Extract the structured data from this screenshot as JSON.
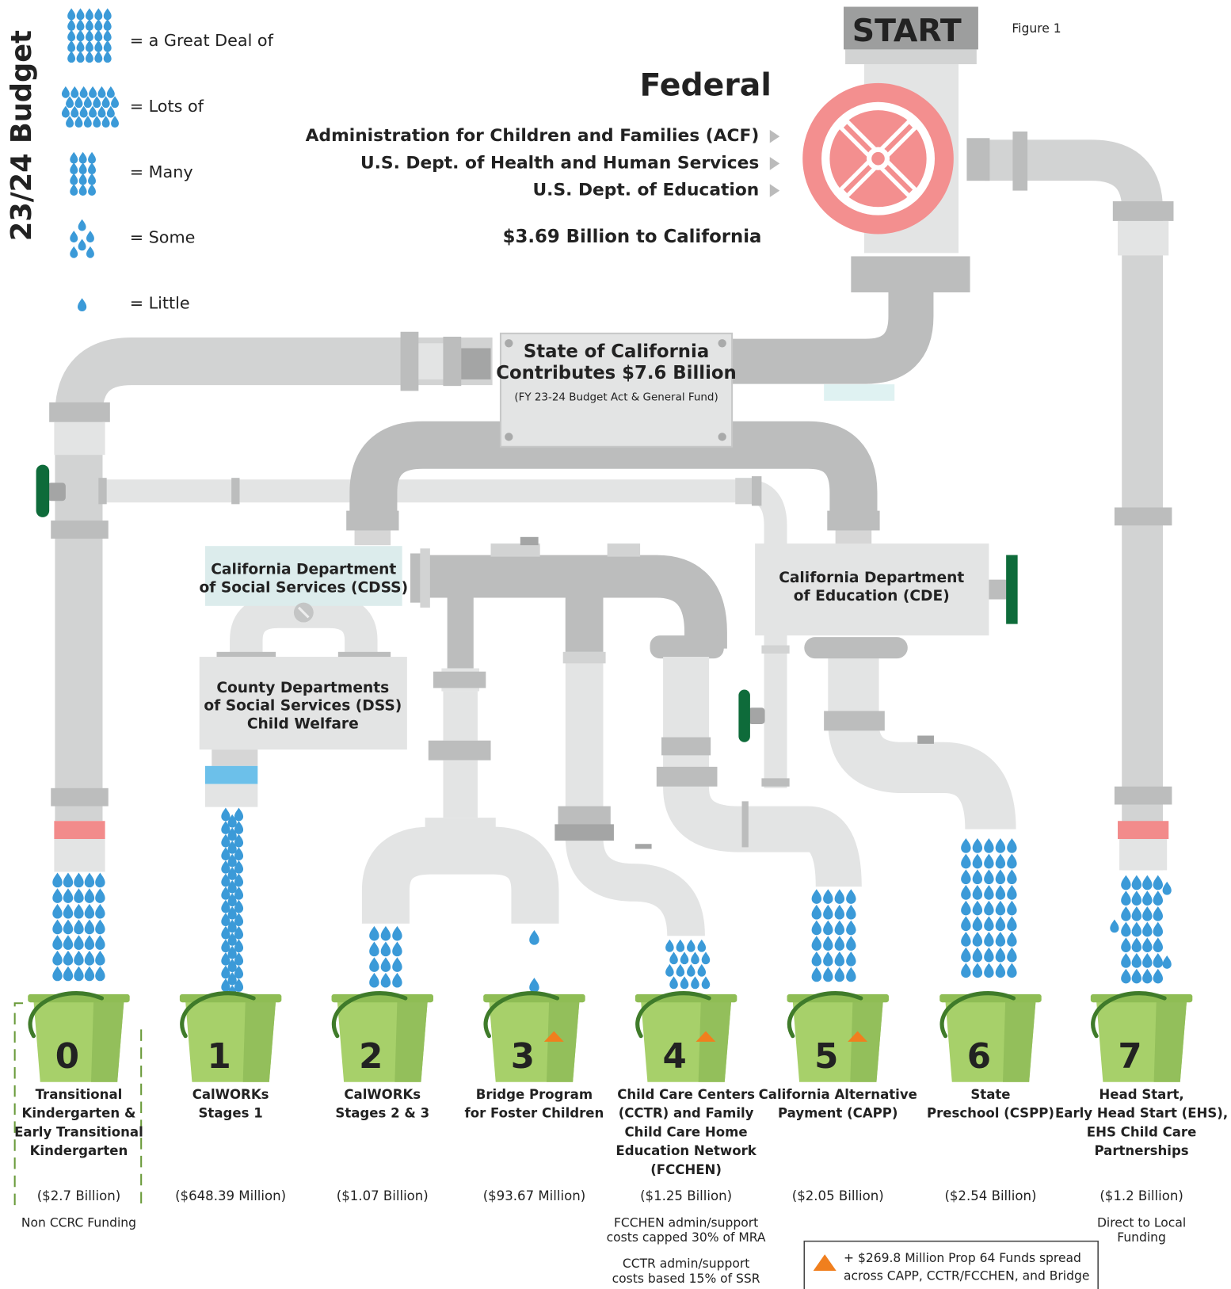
{
  "figure_label": "Figure 1",
  "side_title": "23/24 Budget",
  "legend": [
    "= a Great Deal of",
    "= Lots of",
    "= Many",
    "= Some",
    "= Little"
  ],
  "start": "START",
  "federal": {
    "title": "Federal",
    "agencies": [
      "Administration for Children and Families (ACF)",
      "U.S. Dept. of Health and Human Services",
      "U.S. Dept. of Education"
    ],
    "amount": "$3.69 Billion to California"
  },
  "state": {
    "lines": [
      "State of California",
      "Contributes $7.6 Billion"
    ],
    "note": "(FY 23-24 Budget Act & General Fund)"
  },
  "cdss": [
    "California Department",
    "of Social Services (CDSS)"
  ],
  "dss": [
    "County Departments",
    "of Social Services (DSS)",
    "Child Welfare"
  ],
  "cde": [
    "California Department",
    "of Education (CDE)"
  ],
  "buckets": [
    {
      "number": "0",
      "color": "#dfe8d0",
      "name": [
        "Transitional",
        "Kindergarten &",
        "Early Transitional",
        "Kindergarten"
      ],
      "amount": "($2.7 Billion)"
    },
    {
      "number": "1",
      "color": "#e0197d",
      "name": [
        "CalWORKs",
        "Stages  1"
      ],
      "amount": "($648.39 Million)"
    },
    {
      "number": "2",
      "color": "#f4ea1e",
      "name": [
        "CalWORKs",
        "Stages  2 & 3"
      ],
      "amount": "($1.07 Billion)"
    },
    {
      "number": "3",
      "color": "#1a9a48",
      "prop64": true,
      "name": [
        "Bridge Program",
        "for Foster Children"
      ],
      "amount": "($93.67 Million)"
    },
    {
      "number": "4",
      "color": "#1d2b1a",
      "prop64": true,
      "name": [
        "Child Care Centers",
        "(CCTR) and Family",
        "Child Care Home",
        "Education Network",
        "(FCCHEN)"
      ],
      "amount": "($1.25 Billion)",
      "notes": [
        [
          "FCCHEN admin/support",
          "costs capped 30% of MRA"
        ],
        [
          "CCTR admin/support",
          "costs based 15% of SSR"
        ]
      ]
    },
    {
      "number": "5",
      "color": "#e5262a",
      "prop64": true,
      "name": [
        "California Alternative",
        "Payment (CAPP)"
      ],
      "amount": "($2.05 Billion)"
    },
    {
      "number": "6",
      "color": "#24327a",
      "name": [
        "State",
        "Preschool (CSPP)"
      ],
      "amount": "($2.54 Billion)"
    },
    {
      "number": "7",
      "color": "#7a2b8e",
      "name": [
        "Head Start,",
        "Early Head Start (EHS),",
        "EHS Child Care",
        "Partnerships"
      ],
      "amount": "($1.2 Billion)",
      "notes": [
        [
          "Direct to Local",
          "Funding"
        ]
      ]
    }
  ],
  "non_ccrc": "Non CCRC Funding",
  "footnote": [
    "+ $269.8 Million Prop 64 Funds spread",
    "across CAPP, CCTR/FCCHEN, and Bridge"
  ]
}
